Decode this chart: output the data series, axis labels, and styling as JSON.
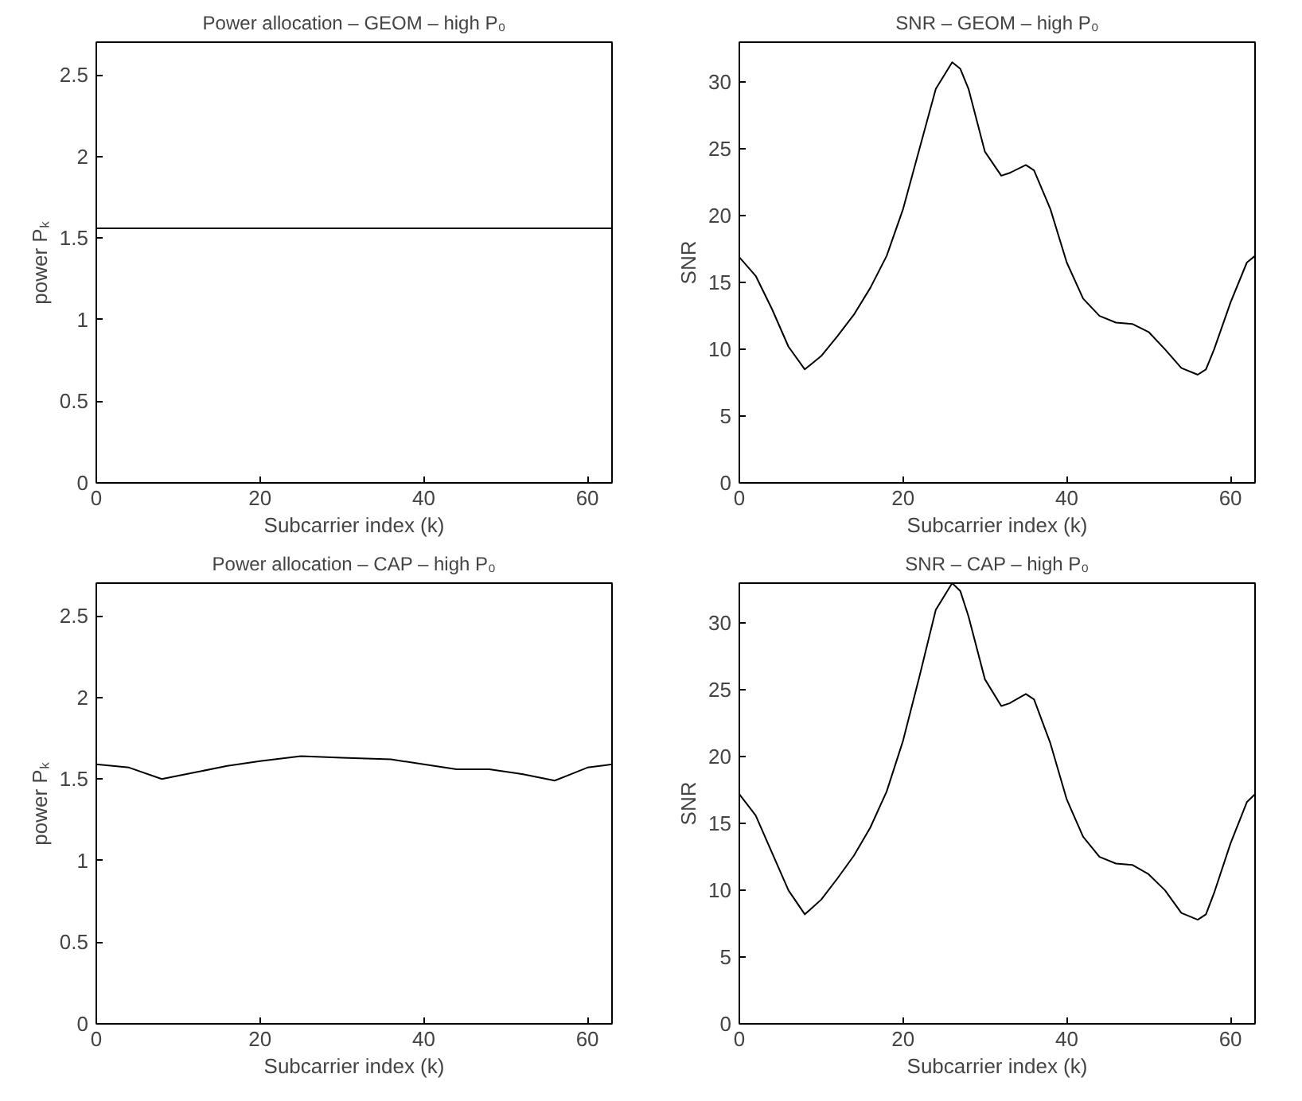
{
  "chart_data": [
    {
      "type": "line",
      "title": "Power allocation – GEOM – high P₀",
      "xlabel": "Subcarrier index (k)",
      "ylabel": "power Pₖ",
      "xlim": [
        0,
        63
      ],
      "ylim": [
        0,
        2.7
      ],
      "xticks": [
        0,
        20,
        40,
        60
      ],
      "yticks": [
        0,
        0.5,
        1,
        1.5,
        2,
        2.5
      ],
      "x": [
        0,
        63
      ],
      "series": [
        {
          "color": "#000000",
          "values": [
            1.56,
            1.56
          ]
        }
      ]
    },
    {
      "type": "line",
      "title": "SNR – GEOM – high P₀",
      "xlabel": "Subcarrier index (k)",
      "ylabel": "SNR",
      "xlim": [
        0,
        63
      ],
      "ylim": [
        0,
        33
      ],
      "xticks": [
        0,
        20,
        40,
        60
      ],
      "yticks": [
        0,
        5,
        10,
        15,
        20,
        25,
        30
      ],
      "x": [
        0,
        2,
        4,
        6,
        8,
        10,
        12,
        14,
        16,
        18,
        20,
        22,
        24,
        26,
        27,
        28,
        30,
        32,
        33,
        35,
        36,
        38,
        40,
        42,
        44,
        46,
        48,
        50,
        52,
        54,
        56,
        57,
        58,
        60,
        62,
        63
      ],
      "series": [
        {
          "color": "#000000",
          "values": [
            16.9,
            15.5,
            13,
            10.2,
            8.5,
            9.5,
            11,
            12.6,
            14.6,
            17,
            20.5,
            25,
            29.5,
            31.5,
            31,
            29.5,
            24.8,
            23,
            23.2,
            23.8,
            23.4,
            20.5,
            16.5,
            13.8,
            12.5,
            12,
            11.9,
            11.3,
            10,
            8.6,
            8.1,
            8.5,
            10,
            13.5,
            16.5,
            17
          ]
        }
      ]
    },
    {
      "type": "line",
      "title": "Power allocation – CAP – high P₀",
      "xlabel": "Subcarrier index (k)",
      "ylabel": "power Pₖ",
      "xlim": [
        0,
        63
      ],
      "ylim": [
        0,
        2.7
      ],
      "xticks": [
        0,
        20,
        40,
        60
      ],
      "yticks": [
        0,
        0.5,
        1,
        1.5,
        2,
        2.5
      ],
      "x": [
        0,
        4,
        8,
        12,
        16,
        20,
        25,
        30,
        36,
        40,
        44,
        48,
        52,
        56,
        58,
        60,
        63
      ],
      "series": [
        {
          "color": "#000000",
          "values": [
            1.59,
            1.57,
            1.5,
            1.54,
            1.58,
            1.61,
            1.64,
            1.63,
            1.62,
            1.59,
            1.56,
            1.56,
            1.53,
            1.49,
            1.53,
            1.57,
            1.59
          ]
        }
      ]
    },
    {
      "type": "line",
      "title": "SNR – CAP – high P₀",
      "xlabel": "Subcarrier index (k)",
      "ylabel": "SNR",
      "xlim": [
        0,
        63
      ],
      "ylim": [
        0,
        33
      ],
      "xticks": [
        0,
        20,
        40,
        60
      ],
      "yticks": [
        0,
        5,
        10,
        15,
        20,
        25,
        30
      ],
      "x": [
        0,
        2,
        4,
        6,
        8,
        10,
        12,
        14,
        16,
        18,
        20,
        22,
        24,
        26,
        27,
        28,
        30,
        32,
        33,
        35,
        36,
        38,
        40,
        42,
        44,
        46,
        48,
        50,
        52,
        54,
        56,
        57,
        58,
        60,
        62,
        63
      ],
      "series": [
        {
          "color": "#000000",
          "values": [
            17.2,
            15.6,
            12.8,
            10,
            8.2,
            9.3,
            10.9,
            12.6,
            14.7,
            17.4,
            21.2,
            26,
            31,
            33,
            32.4,
            30.5,
            25.8,
            23.8,
            24,
            24.7,
            24.3,
            21,
            16.8,
            14,
            12.5,
            12,
            11.9,
            11.2,
            10,
            8.3,
            7.8,
            8.2,
            9.8,
            13.5,
            16.6,
            17.2
          ]
        }
      ]
    }
  ]
}
